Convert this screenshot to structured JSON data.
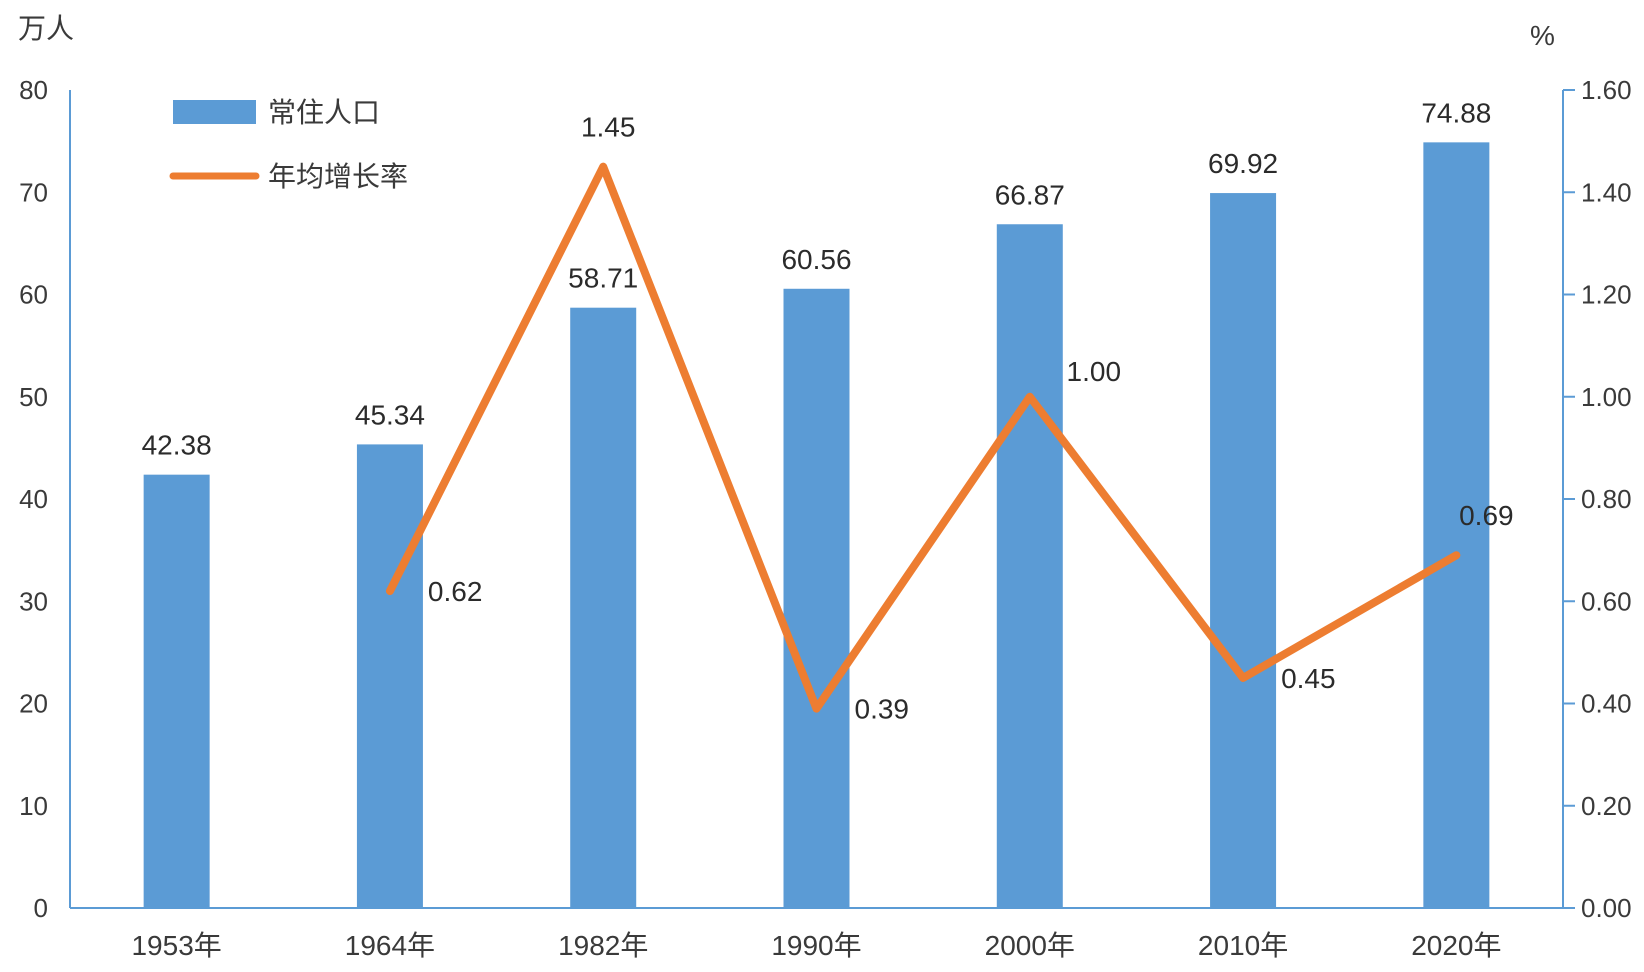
{
  "chart_data": {
    "type": "bar",
    "title": "",
    "categories": [
      "1953年",
      "1964年",
      "1982年",
      "1990年",
      "2000年",
      "2010年",
      "2020年"
    ],
    "left_axis": {
      "unit": "万人",
      "ylim": [
        0,
        80
      ],
      "ticks": [
        "0",
        "10",
        "20",
        "30",
        "40",
        "50",
        "60",
        "70",
        "80"
      ]
    },
    "right_axis": {
      "unit": "%",
      "ylim": [
        0,
        1.6
      ],
      "ticks": [
        "0.00",
        "0.20",
        "0.40",
        "0.60",
        "0.80",
        "1.00",
        "1.20",
        "1.40",
        "1.60"
      ]
    },
    "series": [
      {
        "name": "常住人口",
        "type": "bar",
        "axis": "left",
        "color": "#5b9bd5",
        "values": [
          42.38,
          45.34,
          58.71,
          60.56,
          66.87,
          69.92,
          74.88
        ],
        "labels": [
          "42.38",
          "45.34",
          "58.71",
          "60.56",
          "66.87",
          "69.92",
          "74.88"
        ]
      },
      {
        "name": "年均增长率",
        "type": "line",
        "axis": "right",
        "color": "#ed7d31",
        "values": [
          null,
          0.62,
          1.45,
          0.39,
          1.0,
          0.45,
          0.69
        ],
        "labels": [
          "",
          "0.62",
          "1.45",
          "0.39",
          "1.00",
          "0.45",
          "0.69"
        ]
      }
    ],
    "legend": {
      "position": "top-left"
    },
    "grid": false
  }
}
